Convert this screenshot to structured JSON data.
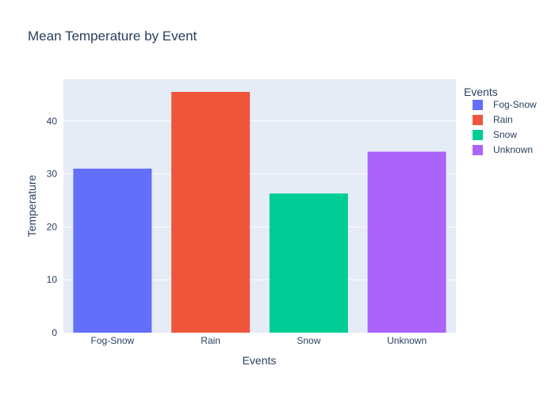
{
  "chart_data": {
    "type": "bar",
    "title": "Mean Temperature by Event",
    "xlabel": "Events",
    "ylabel": "Temperature",
    "categories": [
      "Fog-Snow",
      "Rain",
      "Snow",
      "Unknown"
    ],
    "values": [
      31.0,
      45.5,
      26.3,
      34.2
    ],
    "colors": [
      "#636efa",
      "#ef553b",
      "#00cc96",
      "#ab63fa"
    ],
    "ylim": [
      0,
      47.9
    ],
    "yticks": [
      0,
      10,
      20,
      30,
      40
    ],
    "grid": true,
    "legend": {
      "title": "Events",
      "placement": "right",
      "items": [
        "Fog-Snow",
        "Rain",
        "Snow",
        "Unknown"
      ]
    },
    "plot_background": "#e5ecf6",
    "text_color": "#2a3f5f"
  }
}
